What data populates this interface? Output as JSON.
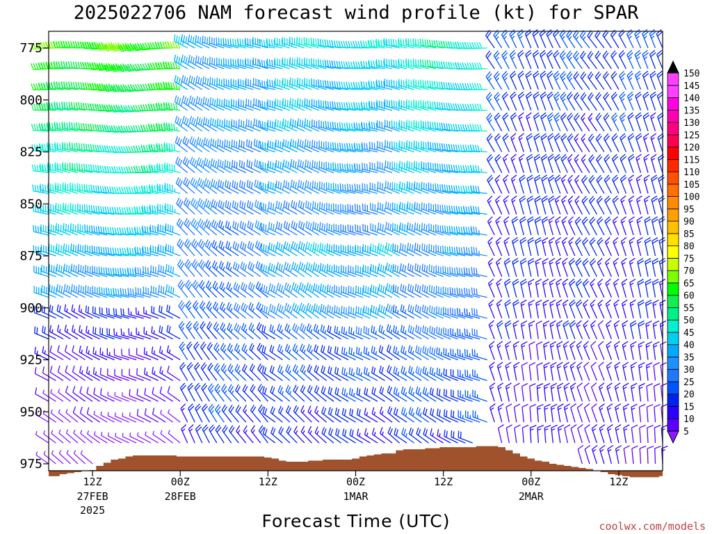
{
  "chart_data": {
    "type": "wind-barb time-height",
    "title": "2025022706 NAM forecast wind profile (kt) for SPAR",
    "xlabel": "Forecast Time (UTC)",
    "units": "kt",
    "credit": "coolwx.com/models",
    "y_axis": {
      "label": "",
      "ticks": [
        "775",
        "800",
        "825",
        "850",
        "875",
        "900",
        "925",
        "950",
        "975"
      ],
      "ylim": [
        983,
        767
      ],
      "direction": "pressure decreasing upward"
    },
    "x_axis": {
      "ticks": [
        {
          "l1": "12Z",
          "l2": "27FEB",
          "l3": "2025",
          "hour": 6
        },
        {
          "l1": "00Z",
          "l2": "28FEB",
          "l3": "",
          "hour": 18
        },
        {
          "l1": "12Z",
          "l2": "",
          "l3": "",
          "hour": 30
        },
        {
          "l1": "00Z",
          "l2": "1MAR",
          "l3": "",
          "hour": 42
        },
        {
          "l1": "12Z",
          "l2": "",
          "l3": "",
          "hour": 54
        },
        {
          "l1": "00Z",
          "l2": "2MAR",
          "l3": "",
          "hour": 66
        },
        {
          "l1": "12Z",
          "l2": "",
          "l3": "",
          "hour": 78
        }
      ],
      "xlim": [
        0,
        84
      ]
    },
    "colorbar": {
      "levels": [
        5,
        10,
        15,
        20,
        25,
        30,
        35,
        40,
        45,
        50,
        55,
        60,
        65,
        70,
        75,
        80,
        85,
        90,
        95,
        100,
        105,
        110,
        115,
        120,
        125,
        130,
        135,
        140,
        145,
        150
      ],
      "colors": [
        "#8c1cff",
        "#5a00ff",
        "#2b00ff",
        "#0022ee",
        "#0055ff",
        "#1f77ff",
        "#1e90ff",
        "#00aaff",
        "#00d0ee",
        "#00f0d0",
        "#00f08a",
        "#10f050",
        "#00ff00",
        "#7cff00",
        "#c8ff00",
        "#ffff00",
        "#ffe000",
        "#ffc000",
        "#ffa000",
        "#ff8c00",
        "#ff7000",
        "#ff5000",
        "#ff2800",
        "#ff0000",
        "#ff0050",
        "#ff0080",
        "#ff00b0",
        "#ff00e0",
        "#ff40ff",
        "#000000"
      ]
    },
    "terrain": {
      "color": "#a0522d",
      "hours": [
        0,
        1,
        2,
        3,
        4,
        5,
        6,
        7,
        8,
        9,
        10,
        11,
        12,
        13,
        14,
        15,
        16,
        17,
        18,
        19,
        20,
        21,
        22,
        23,
        24,
        25,
        26,
        27,
        28,
        29,
        30,
        31,
        32,
        33,
        34,
        35,
        36,
        37,
        38,
        39,
        40,
        41,
        42,
        43,
        44,
        45,
        46,
        47,
        48,
        49,
        50,
        51,
        52,
        53,
        54,
        55,
        56,
        57,
        58,
        59,
        60,
        61,
        62,
        63,
        64,
        65,
        66,
        67,
        68,
        69,
        70,
        71,
        72,
        73,
        74,
        75,
        76,
        77,
        78,
        79,
        80,
        81,
        82,
        83,
        84
      ],
      "surface_pressure_mb": [
        981,
        981,
        980,
        979.5,
        979,
        978.5,
        978,
        976,
        974.5,
        973,
        972.5,
        971.5,
        971,
        971,
        971,
        971,
        971,
        971,
        971.5,
        971.5,
        971.5,
        971.5,
        971.5,
        971.5,
        971.5,
        971.5,
        971.5,
        971.5,
        971.5,
        971.5,
        972,
        972.5,
        973.5,
        974,
        974,
        974,
        973.5,
        973.5,
        973,
        973,
        973,
        973,
        972.5,
        971.5,
        971,
        970.5,
        970,
        970,
        968.5,
        968,
        968,
        968,
        967.5,
        967.5,
        967,
        967,
        967,
        967,
        967,
        966.5,
        966.5,
        966.5,
        967,
        968.5,
        970,
        971.5,
        972.5,
        973.5,
        974,
        975,
        975.5,
        976,
        976.5,
        977,
        977.5,
        978.5,
        979,
        980,
        980.5,
        981,
        981.5,
        981.5,
        981.5,
        981.5,
        981
      ]
    },
    "wind_profile": {
      "pressure_levels_mb": [
        975,
        965,
        955,
        945,
        935,
        925,
        915,
        905,
        895,
        885,
        875,
        865,
        855,
        845,
        835,
        825,
        815,
        805,
        795,
        785,
        775
      ],
      "description": "Hourly wind barbs (hours 0-84) at pressure levels 975-775 mb; speeds range roughly 5-70 kt; westerly to northwesterly flow aloft, strongest (55-70 kt) near 775-805 mb early, weaker (5-20 kt) near surface and beyond hour 63."
    }
  }
}
